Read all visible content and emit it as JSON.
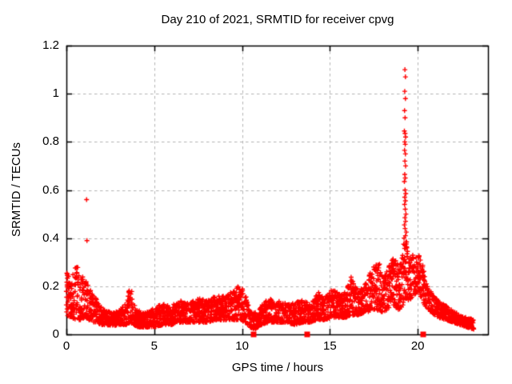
{
  "title": "Day 210 of 2021, SRMTID for receiver cpvg",
  "x_axis": {
    "label": "GPS time / hours",
    "tick_labels": [
      "0",
      "5",
      "10",
      "15",
      "20"
    ],
    "tick_values": [
      0,
      5,
      10,
      15,
      20
    ],
    "range": [
      0,
      24
    ]
  },
  "y_axis": {
    "label": "SRMTID / TECUs",
    "tick_labels": [
      "0",
      "0.2",
      "0.4",
      "0.6",
      "0.8",
      "1",
      "1.2"
    ],
    "tick_values": [
      0,
      0.2,
      0.4,
      0.6,
      0.8,
      1.0,
      1.2
    ],
    "range": [
      0,
      1.2
    ]
  },
  "colors": {
    "marker": "#ff0000",
    "grid": "#b4b4b4",
    "border": "#000000",
    "text": "#000000",
    "background": "#ffffff"
  },
  "chart_data": {
    "type": "scatter",
    "marker": "plus",
    "title": "Day 210 of 2021, SRMTID for receiver cpvg",
    "xlabel": "GPS time / hours",
    "ylabel": "SRMTID / TECUs",
    "xlim": [
      0,
      24
    ],
    "ylim": [
      0,
      1.2
    ],
    "grid": true,
    "legend": "none",
    "series_name": "SRMTID",
    "series_color": "#ff0000",
    "band_envelope_x_lo_hi": [
      [
        0.0,
        0.08,
        0.28
      ],
      [
        0.3,
        0.07,
        0.24
      ],
      [
        0.55,
        0.06,
        0.31
      ],
      [
        0.8,
        0.06,
        0.23
      ],
      [
        1.05,
        0.07,
        0.25
      ],
      [
        1.3,
        0.06,
        0.2
      ],
      [
        1.6,
        0.05,
        0.16
      ],
      [
        1.9,
        0.04,
        0.12
      ],
      [
        2.2,
        0.04,
        0.1
      ],
      [
        2.6,
        0.035,
        0.09
      ],
      [
        3.0,
        0.04,
        0.1
      ],
      [
        3.4,
        0.04,
        0.13
      ],
      [
        3.65,
        0.05,
        0.22
      ],
      [
        3.8,
        0.04,
        0.14
      ],
      [
        4.1,
        0.03,
        0.1
      ],
      [
        4.5,
        0.03,
        0.09
      ],
      [
        5.0,
        0.03,
        0.11
      ],
      [
        5.5,
        0.04,
        0.13
      ],
      [
        6.0,
        0.04,
        0.12
      ],
      [
        6.5,
        0.05,
        0.14
      ],
      [
        7.0,
        0.05,
        0.13
      ],
      [
        7.5,
        0.05,
        0.15
      ],
      [
        8.0,
        0.05,
        0.14
      ],
      [
        8.5,
        0.06,
        0.16
      ],
      [
        9.0,
        0.06,
        0.16
      ],
      [
        9.5,
        0.06,
        0.18
      ],
      [
        9.9,
        0.06,
        0.21
      ],
      [
        10.15,
        0.05,
        0.18
      ],
      [
        10.45,
        0.03,
        0.1
      ],
      [
        10.75,
        0.02,
        0.09
      ],
      [
        11.1,
        0.04,
        0.12
      ],
      [
        11.5,
        0.05,
        0.15
      ],
      [
        12.0,
        0.05,
        0.14
      ],
      [
        12.5,
        0.05,
        0.13
      ],
      [
        13.0,
        0.04,
        0.13
      ],
      [
        13.5,
        0.05,
        0.15
      ],
      [
        13.9,
        0.05,
        0.13
      ],
      [
        14.3,
        0.06,
        0.18
      ],
      [
        14.7,
        0.06,
        0.15
      ],
      [
        15.1,
        0.07,
        0.19
      ],
      [
        15.5,
        0.07,
        0.17
      ],
      [
        15.9,
        0.07,
        0.18
      ],
      [
        16.2,
        0.08,
        0.24
      ],
      [
        16.6,
        0.08,
        0.18
      ],
      [
        17.0,
        0.09,
        0.21
      ],
      [
        17.4,
        0.1,
        0.28
      ],
      [
        17.75,
        0.1,
        0.31
      ],
      [
        18.05,
        0.09,
        0.24
      ],
      [
        18.35,
        0.1,
        0.29
      ],
      [
        18.65,
        0.12,
        0.32
      ],
      [
        18.95,
        0.1,
        0.28
      ],
      [
        19.15,
        0.12,
        0.35
      ],
      [
        19.3,
        0.15,
        0.4
      ],
      [
        19.5,
        0.14,
        0.35
      ],
      [
        19.75,
        0.16,
        0.33
      ],
      [
        20.0,
        0.18,
        0.35
      ],
      [
        20.25,
        0.14,
        0.3
      ],
      [
        20.5,
        0.11,
        0.22
      ],
      [
        20.8,
        0.09,
        0.17
      ],
      [
        21.2,
        0.07,
        0.14
      ],
      [
        21.6,
        0.06,
        0.12
      ],
      [
        22.0,
        0.05,
        0.1
      ],
      [
        22.4,
        0.04,
        0.08
      ],
      [
        22.8,
        0.03,
        0.07
      ],
      [
        23.2,
        0.02,
        0.06
      ]
    ],
    "peak_points": [
      [
        19.27,
        1.1
      ],
      [
        19.3,
        1.07
      ],
      [
        19.26,
        1.01
      ],
      [
        19.3,
        0.98
      ],
      [
        19.25,
        0.93
      ],
      [
        19.28,
        0.9
      ],
      [
        19.24,
        0.845
      ],
      [
        19.28,
        0.835
      ],
      [
        19.31,
        0.82
      ],
      [
        19.26,
        0.8
      ],
      [
        19.29,
        0.79
      ],
      [
        19.25,
        0.765
      ],
      [
        19.3,
        0.75
      ],
      [
        19.27,
        0.72
      ],
      [
        19.31,
        0.7
      ],
      [
        19.26,
        0.665
      ],
      [
        19.29,
        0.65
      ],
      [
        19.24,
        0.635
      ],
      [
        19.28,
        0.6
      ],
      [
        19.32,
        0.585
      ],
      [
        19.26,
        0.57
      ],
      [
        19.3,
        0.555
      ],
      [
        19.25,
        0.54
      ],
      [
        19.29,
        0.52
      ],
      [
        19.33,
        0.5
      ],
      [
        19.27,
        0.485
      ],
      [
        19.31,
        0.47
      ],
      [
        19.24,
        0.455
      ],
      [
        19.28,
        0.44
      ],
      [
        19.35,
        0.425
      ],
      [
        19.3,
        0.41
      ],
      [
        19.22,
        0.4
      ],
      [
        19.33,
        0.385
      ],
      [
        19.27,
        0.37
      ],
      [
        19.38,
        0.36
      ],
      [
        19.2,
        0.375
      ],
      [
        19.42,
        0.345
      ]
    ],
    "outlier_points": [
      [
        1.15,
        0.56
      ],
      [
        1.17,
        0.39
      ]
    ],
    "zero_square_markers_x": [
      10.65,
      13.7,
      20.3
    ]
  }
}
